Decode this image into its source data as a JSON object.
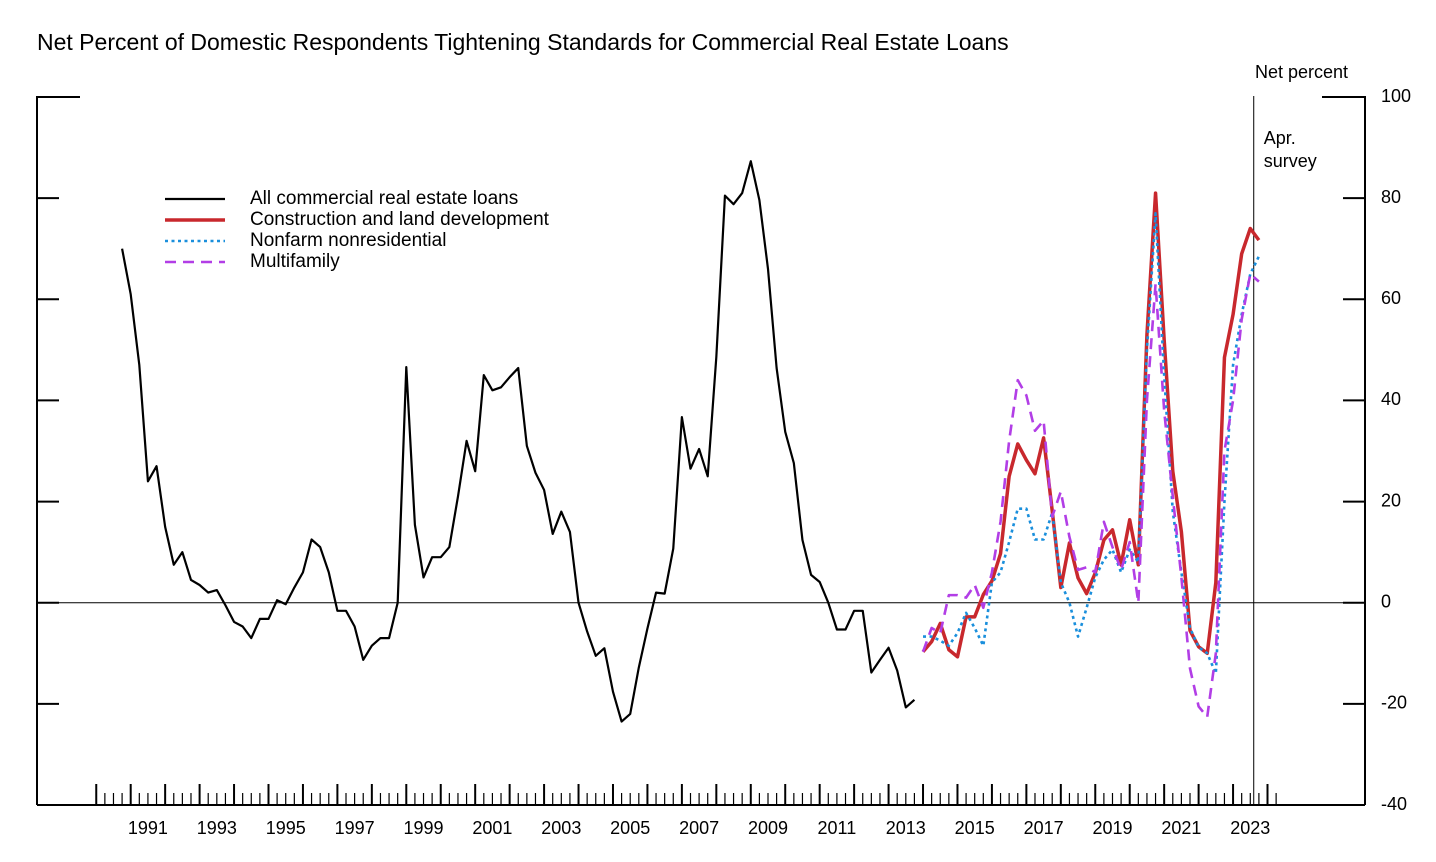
{
  "chart_data": {
    "type": "line",
    "title": "Net Percent of Domestic Respondents Tightening Standards for Commercial Real Estate Loans",
    "y_axis_label": "Net percent",
    "annotation": {
      "lines": [
        "Apr.",
        "survey"
      ],
      "x": 2023.6
    },
    "xlim": [
      1988.28,
      2026.83
    ],
    "xticks": [
      {
        "value": 1991.5,
        "label": "1991"
      },
      {
        "value": 1993.5,
        "label": "1993"
      },
      {
        "value": 1995.5,
        "label": "1995"
      },
      {
        "value": 1997.5,
        "label": "1997"
      },
      {
        "value": 1999.5,
        "label": "1999"
      },
      {
        "value": 2001.5,
        "label": "2001"
      },
      {
        "value": 2003.5,
        "label": "2003"
      },
      {
        "value": 2005.5,
        "label": "2005"
      },
      {
        "value": 2007.5,
        "label": "2007"
      },
      {
        "value": 2009.5,
        "label": "2009"
      },
      {
        "value": 2011.5,
        "label": "2011"
      },
      {
        "value": 2013.5,
        "label": "2013"
      },
      {
        "value": 2015.5,
        "label": "2015"
      },
      {
        "value": 2017.5,
        "label": "2017"
      },
      {
        "value": 2019.5,
        "label": "2019"
      },
      {
        "value": 2021.5,
        "label": "2021"
      },
      {
        "value": 2023.5,
        "label": "2023"
      }
    ],
    "xtick_marks": {
      "from": 1990,
      "to": 2024.25,
      "step": 0.25
    },
    "ylim": [
      -40,
      100
    ],
    "yticks": [
      100,
      80,
      60,
      40,
      20,
      0,
      -20,
      -40
    ],
    "legend_position": "upper left",
    "series": [
      {
        "name": "All commercial real estate loans",
        "color": "#000000",
        "style": "solid",
        "x": [
          1990.75,
          1991,
          1991.25,
          1991.5,
          1991.75,
          1992,
          1992.25,
          1992.5,
          1992.75,
          1993,
          1993.25,
          1993.5,
          1993.75,
          1994,
          1994.25,
          1994.5,
          1994.75,
          1995,
          1995.25,
          1995.5,
          1995.75,
          1996,
          1996.25,
          1996.5,
          1996.75,
          1997,
          1997.25,
          1997.5,
          1997.75,
          1998,
          1998.25,
          1998.5,
          1998.75,
          1999,
          1999.25,
          1999.5,
          1999.75,
          2000,
          2000.25,
          2000.5,
          2000.75,
          2001,
          2001.25,
          2001.5,
          2001.75,
          2002,
          2002.25,
          2002.5,
          2002.75,
          2003,
          2003.25,
          2003.5,
          2003.75,
          2004,
          2004.25,
          2004.5,
          2004.75,
          2005,
          2005.25,
          2005.5,
          2005.75,
          2006,
          2006.25,
          2006.5,
          2006.75,
          2007,
          2007.25,
          2007.5,
          2007.75,
          2008,
          2008.25,
          2008.5,
          2008.75,
          2009,
          2009.25,
          2009.5,
          2009.75,
          2010,
          2010.25,
          2010.5,
          2010.75,
          2011,
          2011.25,
          2011.5,
          2011.75,
          2012,
          2012.25,
          2012.5,
          2012.75,
          2013,
          2013.25,
          2013.5,
          2013.75
        ],
        "values": [
          70,
          61,
          47,
          24,
          27,
          15,
          7.5,
          10,
          4.5,
          3.5,
          2,
          2.5,
          -0.5,
          -3.8,
          -4.7,
          -7,
          -3.2,
          -3.2,
          0.5,
          -0.3,
          3,
          6,
          12.5,
          11,
          6,
          -1.6,
          -1.6,
          -4.7,
          -11.3,
          -8.5,
          -7,
          -7,
          0,
          46.6,
          15.4,
          5,
          9,
          9,
          11,
          21,
          32,
          26,
          45,
          42,
          42.6,
          44.6,
          46.4,
          31,
          25.7,
          22.3,
          13.6,
          18,
          14,
          0,
          -5.7,
          -10.5,
          -9,
          -17.6,
          -23.5,
          -22,
          -12.8,
          -5.1,
          2,
          1.8,
          10.7,
          36.7,
          26.5,
          30.4,
          25,
          48.6,
          80.5,
          78.8,
          81,
          87.3,
          79.6,
          66,
          46.4,
          33.8,
          27.6,
          12.4,
          5.5,
          4.1,
          0,
          -5.3,
          -5.3,
          -1.6,
          -1.6,
          -13.8,
          -11.3,
          -8.9,
          -13.4,
          -20.7,
          -19.2
        ]
      },
      {
        "name": "Construction and land development",
        "color": "#c8282d",
        "style": "solid",
        "x": [
          2014,
          2014.25,
          2014.5,
          2014.75,
          2015,
          2015.25,
          2015.5,
          2015.75,
          2016,
          2016.25,
          2016.5,
          2016.75,
          2017,
          2017.25,
          2017.5,
          2017.75,
          2018,
          2018.25,
          2018.5,
          2018.75,
          2019,
          2019.25,
          2019.5,
          2019.75,
          2020,
          2020.25,
          2020.5,
          2020.75,
          2021,
          2021.25,
          2021.5,
          2021.75,
          2022,
          2022.25,
          2022.5,
          2022.75,
          2023,
          2023.25,
          2023.5,
          2023.75
        ],
        "values": [
          -9.7,
          -7.7,
          -4.1,
          -9.3,
          -10.7,
          -2.8,
          -2.8,
          1.6,
          4.3,
          9.7,
          25,
          31.4,
          28.2,
          25.5,
          32.6,
          18.2,
          3,
          11.8,
          4.9,
          1.8,
          5.9,
          12.4,
          14.4,
          7.5,
          16.4,
          7.5,
          53,
          81,
          52,
          26,
          14,
          -5.5,
          -8.7,
          -10,
          4,
          48.5,
          57,
          69,
          74,
          71.7
        ]
      },
      {
        "name": "Nonfarm nonresidential",
        "color": "#1a8fdc",
        "style": "dotted",
        "x": [
          2014,
          2014.25,
          2014.5,
          2014.75,
          2015,
          2015.25,
          2015.5,
          2015.75,
          2016,
          2016.25,
          2016.5,
          2016.75,
          2017,
          2017.25,
          2017.5,
          2017.75,
          2018,
          2018.25,
          2018.5,
          2018.75,
          2019,
          2019.25,
          2019.5,
          2019.75,
          2020,
          2020.25,
          2020.5,
          2020.75,
          2021,
          2021.25,
          2021.5,
          2021.75,
          2022,
          2022.25,
          2022.5,
          2022.75,
          2023,
          2023.25,
          2023.5,
          2023.75
        ],
        "values": [
          -6.7,
          -6.7,
          -7.5,
          -8.5,
          -6,
          -2,
          -5,
          -8.5,
          4,
          6,
          12,
          18.6,
          18.6,
          12.5,
          12.5,
          17.8,
          4,
          0,
          -6.7,
          -1,
          5,
          8.5,
          10.5,
          6,
          10.5,
          8,
          50,
          77,
          45,
          18,
          6,
          -5,
          -8.8,
          -10,
          -14,
          20,
          47,
          57,
          65,
          68.5
        ]
      },
      {
        "name": "Multifamily",
        "color": "#b23ee6",
        "style": "dashed",
        "x": [
          2014,
          2014.25,
          2014.5,
          2014.75,
          2015,
          2015.25,
          2015.5,
          2015.75,
          2016,
          2016.25,
          2016.5,
          2016.75,
          2017,
          2017.25,
          2017.5,
          2017.75,
          2018,
          2018.25,
          2018.5,
          2018.75,
          2019,
          2019.25,
          2019.5,
          2019.75,
          2020,
          2020.25,
          2020.5,
          2020.75,
          2021,
          2021.25,
          2021.5,
          2021.75,
          2022,
          2022.25,
          2022.5,
          2022.75,
          2023,
          2023.25,
          2023.5,
          2023.75
        ],
        "values": [
          -9.7,
          -5,
          -6,
          1.5,
          1.5,
          1,
          3.5,
          -1,
          6,
          16,
          32,
          44,
          41,
          34,
          36,
          17,
          22,
          13,
          6.5,
          7,
          6,
          16,
          11,
          6.5,
          12,
          0,
          40,
          63,
          38,
          21,
          5,
          -13,
          -20.5,
          -22.6,
          -10,
          30,
          40,
          56,
          65,
          63.5
        ]
      }
    ]
  }
}
